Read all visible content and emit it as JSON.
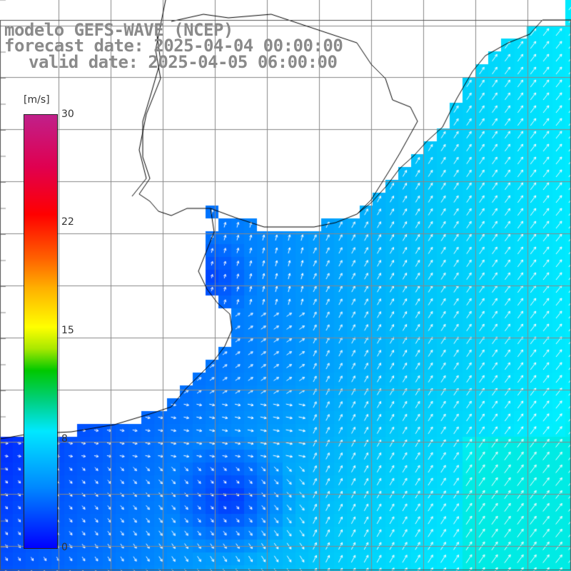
{
  "header": {
    "line1": "modelo GEFS-WAVE (NCEP)",
    "line2": "forecast date: 2025-04-04 00:00:00",
    "line3": "valid date: 2025-04-05 06:00:00"
  },
  "colorbar": {
    "units": "[m/s]",
    "ticks": [
      "30",
      "22",
      "15",
      "8",
      "0"
    ],
    "range": [
      0,
      30
    ]
  },
  "colors": {
    "land": "#ffffff",
    "grid": "#888888",
    "coast": "#000000",
    "arrow": "#ffffff"
  },
  "legend_icons": [
    "wind-arrow-icon"
  ]
}
